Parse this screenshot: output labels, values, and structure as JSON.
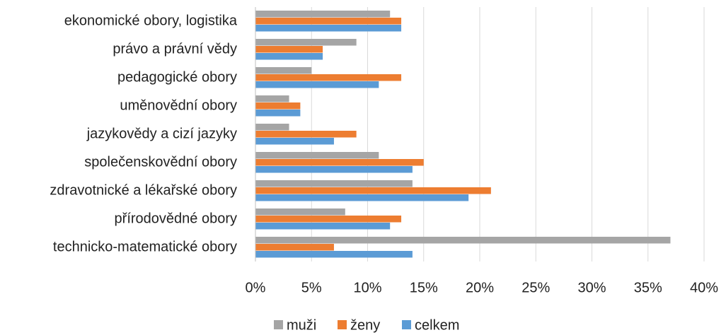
{
  "chart_data": {
    "type": "bar",
    "orientation": "horizontal",
    "categories": [
      "ekonomické obory, logistika",
      "právo a právní vědy",
      "pedagogické obory",
      "uměnovědní obory",
      "jazykovědy a cizí jazyky",
      "společenskovědní obory",
      "zdravotnické a lékařské obory",
      "přírodovědné obory",
      "technicko-matematické obory"
    ],
    "series": [
      {
        "name": "muži",
        "color": "#a5a5a5",
        "values": [
          12,
          9,
          5,
          3,
          3,
          11,
          14,
          8,
          37
        ]
      },
      {
        "name": "ženy",
        "color": "#ed7d31",
        "values": [
          13,
          6,
          13,
          4,
          9,
          15,
          21,
          13,
          7
        ]
      },
      {
        "name": "celkem",
        "color": "#5b9bd5",
        "values": [
          13,
          6,
          11,
          4,
          7,
          14,
          19,
          12,
          14
        ]
      }
    ],
    "xlim": [
      0,
      40
    ],
    "xticks": [
      {
        "value": 0,
        "label": "0%"
      },
      {
        "value": 5,
        "label": "5%"
      },
      {
        "value": 10,
        "label": "10%"
      },
      {
        "value": 15,
        "label": "15%"
      },
      {
        "value": 20,
        "label": "20%"
      },
      {
        "value": 25,
        "label": "25%"
      },
      {
        "value": 30,
        "label": "30%"
      },
      {
        "value": 35,
        "label": "35%"
      },
      {
        "value": 40,
        "label": "40%"
      }
    ],
    "grid": true,
    "legend": "bottom"
  }
}
